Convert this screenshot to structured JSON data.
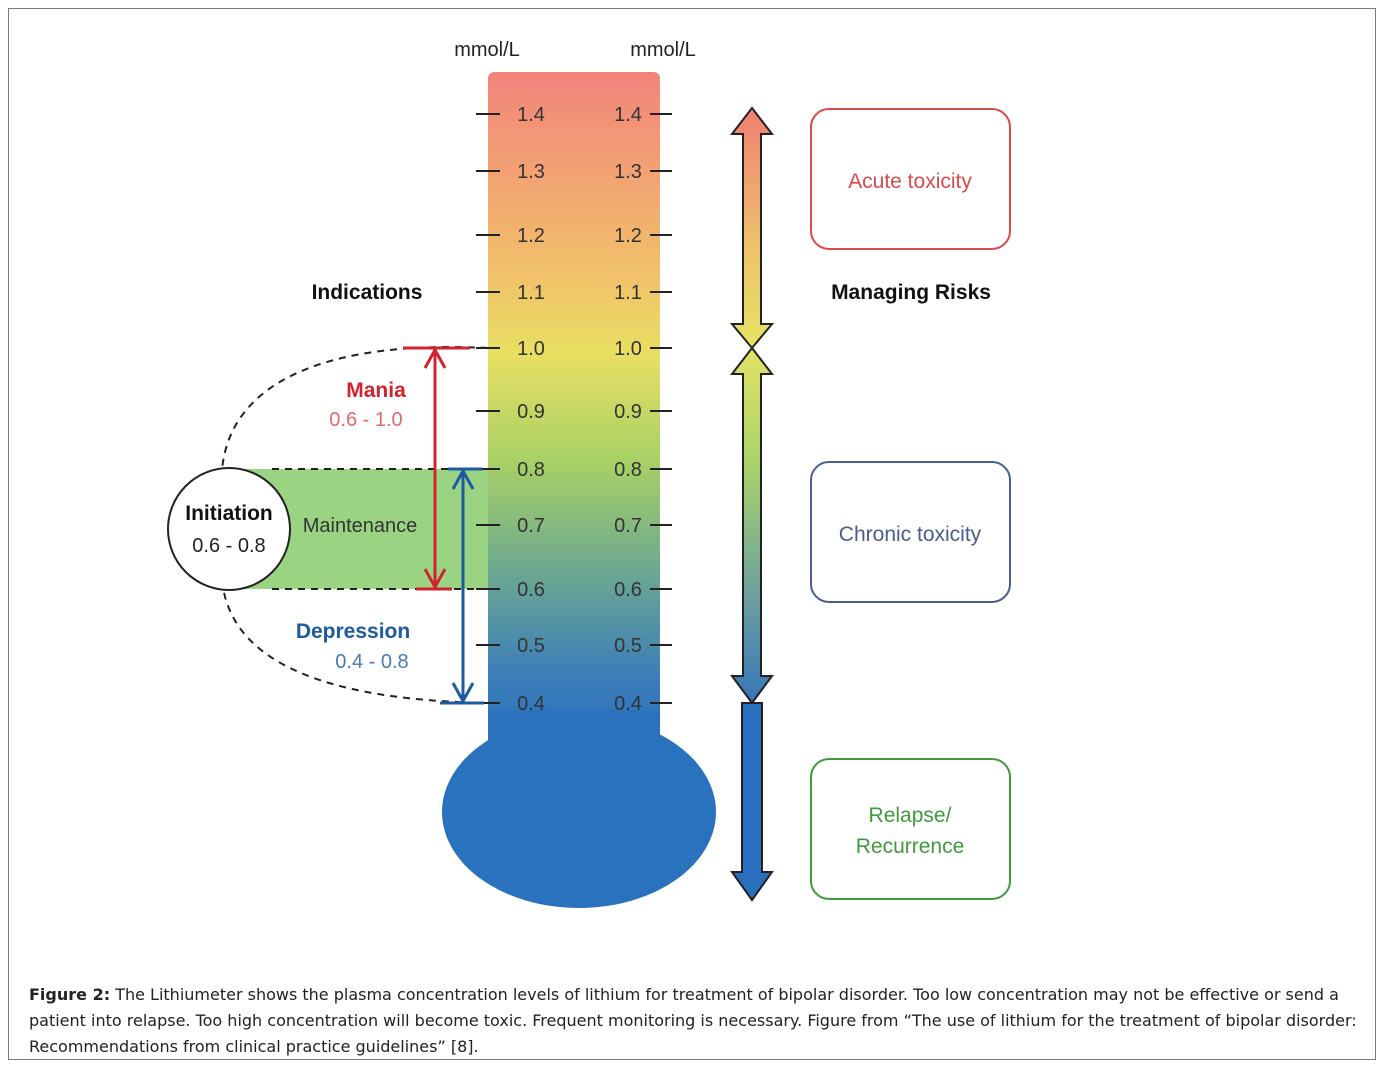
{
  "units": {
    "left": "mmol/L",
    "right": "mmol/L"
  },
  "scale_ticks": [
    "1.4",
    "1.3",
    "1.2",
    "1.1",
    "1.0",
    "0.9",
    "0.8",
    "0.7",
    "0.6",
    "0.5",
    "0.4"
  ],
  "indications": {
    "heading": "Indications",
    "mania": {
      "label": "Mania",
      "range": "0.6 - 1.0",
      "low": 0.6,
      "high": 1.0
    },
    "depression": {
      "label": "Depression",
      "range": "0.4 - 0.8",
      "low": 0.4,
      "high": 0.8
    },
    "initiation": {
      "label": "Initiation",
      "range": "0.6 - 0.8",
      "low": 0.6,
      "high": 0.8
    },
    "maintenance": {
      "label": "Maintenance",
      "low": 0.6,
      "high": 0.8
    }
  },
  "risks": {
    "heading": "Managing Risks",
    "acute": {
      "label": "Acute toxicity"
    },
    "chronic": {
      "label": "Chronic toxicity"
    },
    "relapse": {
      "label_line1": "Relapse/",
      "label_line2": "Recurrence"
    }
  },
  "colors": {
    "mania": "#d1232f",
    "mania_range": "#e0686e",
    "depression": "#1e5aa0",
    "depression_range": "#4a7ab8",
    "acute_box": "#d94a4f",
    "chronic_box": "#4a5d8e",
    "relapse_box": "#3f9a3a",
    "maintenance_band": "#8fcf74",
    "bulb": "#2a72be"
  },
  "caption": {
    "label": "Figure 2:",
    "text": " The Lithiumeter shows the plasma concentration levels of lithium for treatment of bipolar disorder. Too low concentration may not be effective or send a patient into relapse. Too high concentration will become toxic. Frequent monitoring is necessary. Figure from “The use of lithium for the treatment of bipolar disorder: Recommendations from clinical practice guidelines” [8]."
  }
}
